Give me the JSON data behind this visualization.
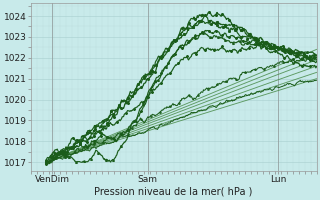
{
  "xlabel": "Pression niveau de la mer( hPa )",
  "bg_color": "#c8eaea",
  "grid_color_major": "#a8cece",
  "grid_color_minor": "#b8d8d8",
  "line_dark": "#1a5c1a",
  "line_light": "#4a8c4a",
  "yticks": [
    1017,
    1018,
    1019,
    1020,
    1021,
    1022,
    1023,
    1024
  ],
  "ymin": 1016.6,
  "ymax": 1024.6,
  "xmin": 0.0,
  "xmax": 1.0,
  "xtick_positions": [
    0.075,
    0.41,
    0.865
  ],
  "xtick_labels": [
    "VenDim",
    "Sam",
    "Lun"
  ]
}
